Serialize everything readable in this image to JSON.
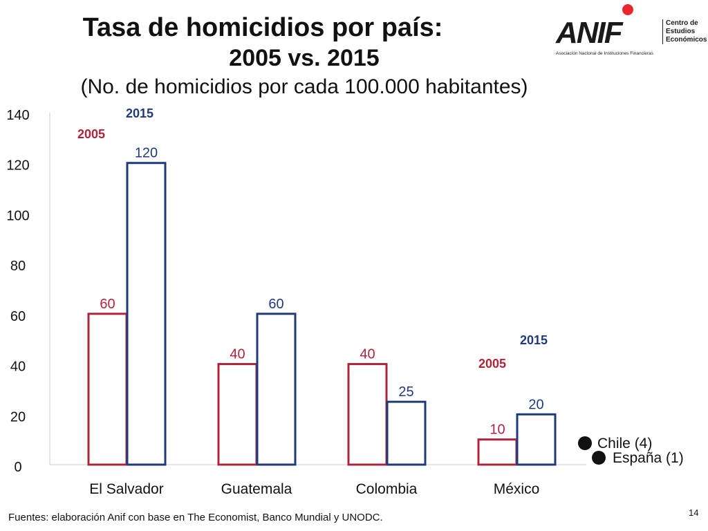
{
  "slide": {
    "title_line1": "Tasa de homicidios por país:",
    "title_line2": "2005 vs. 2015",
    "subtitle": "(No. de homicidios por cada 100.000 habitantes)",
    "source": "Fuentes: elaboración Anif con base en The Economist, Banco Mundial y UNODC.",
    "page_number": "14"
  },
  "logo": {
    "wordmark": "ANIF",
    "side_text_lines": [
      "Centro de",
      "Estudios",
      "Económicos"
    ],
    "subtitle": "Asociación Nacional de Instituciones Financieras",
    "dot_color": "#e8262d"
  },
  "chart_data": {
    "type": "bar",
    "categories": [
      "El Salvador",
      "Guatemala",
      "Colombia",
      "México"
    ],
    "series": [
      {
        "name": "2005",
        "values": [
          60,
          40,
          40,
          10
        ],
        "color": "#b0243a"
      },
      {
        "name": "2015",
        "values": [
          120,
          60,
          25,
          20
        ],
        "color": "#1f3a7a"
      }
    ],
    "data_labels": {
      "2005": [
        "60",
        "40",
        "40",
        "10"
      ],
      "2015": [
        "120",
        "60",
        "25",
        "20"
      ]
    },
    "ylim": [
      0,
      140
    ],
    "yticks": [
      0,
      20,
      40,
      60,
      80,
      100,
      120,
      140
    ],
    "series_labels_near": [
      "El Salvador",
      "México"
    ],
    "annotations": [
      {
        "text": "Chile (4)",
        "value": 4
      },
      {
        "text": "España (1)",
        "value": 1
      }
    ],
    "bar_style": "outlined",
    "grid": false
  }
}
